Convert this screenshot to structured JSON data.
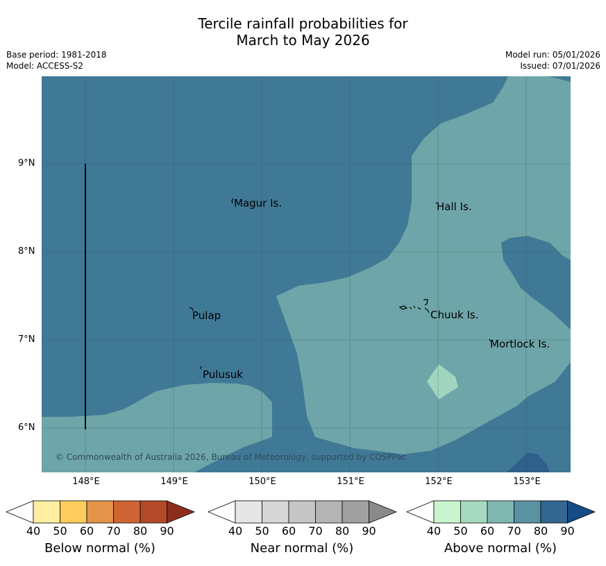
{
  "title_line1": "Tercile rainfall probabilities for",
  "title_line2": "March to May 2026",
  "base_period": "Base period: 1981-2018",
  "model": "Model: ACCESS-S2",
  "model_run": "Model run: 05/01/2026",
  "issued": "Issued: 07/01/2026",
  "lat_labels": [
    "9°N",
    "8°N",
    "7°N",
    "6°N"
  ],
  "lon_labels": [
    "148°E",
    "149°E",
    "150°E",
    "151°E",
    "152°E",
    "153°E"
  ],
  "places": {
    "magur": "Magur Is.",
    "hall": "Hall Is.",
    "pulap": "Pulap",
    "chuuk": "Chuuk Is.",
    "mortlock": "Mortlock Is.",
    "pulusuk": "Pulusuk"
  },
  "copyright": "© Commonwealth of Australia 2026, Bureau of Meteorology, supported by COSPPac",
  "colorbars": {
    "below": {
      "title": "Below normal (%)",
      "ticks": [
        "40",
        "50",
        "60",
        "70",
        "80",
        "90"
      ],
      "colors": [
        "#ffffff",
        "#ffeda0",
        "#fecc5c",
        "#e3944a",
        "#cf6435",
        "#b24a29",
        "#8e2d1e"
      ]
    },
    "near": {
      "title": "Near normal (%)",
      "ticks": [
        "40",
        "50",
        "60",
        "70",
        "80",
        "90"
      ],
      "colors": [
        "#ffffff",
        "#e6e6e6",
        "#d7d7d7",
        "#c6c6c6",
        "#b4b4b4",
        "#a0a0a0",
        "#8a8a8a"
      ]
    },
    "above": {
      "title": "Above normal (%)",
      "ticks": [
        "40",
        "50",
        "60",
        "70",
        "80",
        "90"
      ],
      "colors": [
        "#ffffff",
        "#c8f5cd",
        "#a6d9c2",
        "#7fb7b0",
        "#5b92a3",
        "#336690",
        "#154c86"
      ]
    }
  },
  "colors": {
    "above_80": "#407996",
    "above_70": "#6ea5a8",
    "above_60": "#9fd4bf",
    "above_90": "#305f8c"
  }
}
